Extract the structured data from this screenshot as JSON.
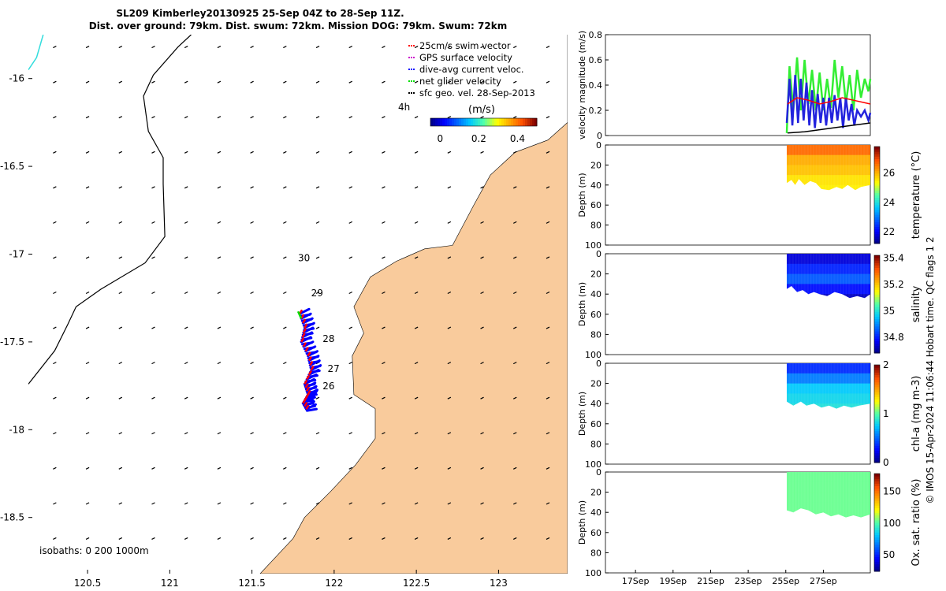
{
  "header": {
    "title_line1": "SL209 Kimberley20130925 25-Sep 04Z to 28-Sep 11Z.",
    "title_line2": "Dist. over ground: 79km. Dist. swum: 72km. Mission DOG: 79km. Swum: 72km"
  },
  "side_note": "© IMOS 15-Apr-2024 11:06:44 Hobart time. QC flags 1  2",
  "colors": {
    "land": "#f9cb9c",
    "coast_line": "#000000",
    "track_red": "#ff0000",
    "track_blue": "#0000ff",
    "track_green": "#00dd00",
    "velocity_green": "#33ee33",
    "velocity_blue": "#2222dd",
    "velocity_red": "#ff0000",
    "cyan_isobath": "#33dddd"
  },
  "chart_data": [
    {
      "id": "map",
      "type": "scatter",
      "xlim": [
        120.14,
        123.42
      ],
      "ylim": [
        -18.82,
        -15.75
      ],
      "x_ticks": [
        "120.5",
        "121",
        "121.5",
        "122",
        "122.5",
        "123"
      ],
      "x_tick_values": [
        120.5,
        121,
        121.5,
        122,
        122.5,
        123
      ],
      "y_ticks": [
        "-16",
        "-16.5",
        "-17",
        "-17.5",
        "-18",
        "-18.5"
      ],
      "y_tick_values": [
        -16,
        -16.5,
        -17,
        -17.5,
        -18,
        -18.5
      ],
      "legend": {
        "placement": "top-right",
        "entries": [
          {
            "label": "25cm/s swim vector",
            "color": "#ff0000"
          },
          {
            "label": "GPS surface velocity",
            "color": "#cc00cc"
          },
          {
            "label": "dive-avg current veloc.",
            "color": "#0000ff"
          },
          {
            "label": "net glider velocity",
            "color": "#00dd00"
          },
          {
            "label": "sfc geo. vel. 28-Sep-2013",
            "color": "#000000"
          }
        ]
      },
      "colorbar": {
        "label": "(m/s)",
        "lag_label": "4h",
        "ticks": [
          "0",
          "0.2",
          "0.4"
        ],
        "tick_values": [
          0,
          0.2,
          0.4
        ],
        "range": [
          -0.05,
          0.5
        ]
      },
      "day_labels": [
        {
          "text": "30",
          "lon": 121.78,
          "lat": -17.04
        },
        {
          "text": "29",
          "lon": 121.86,
          "lat": -17.24
        },
        {
          "text": "28",
          "lon": 121.93,
          "lat": -17.5
        },
        {
          "text": "27",
          "lon": 121.96,
          "lat": -17.67
        },
        {
          "text": "26",
          "lon": 121.93,
          "lat": -17.77
        }
      ],
      "track": [
        [
          121.79,
          -17.34
        ],
        [
          121.82,
          -17.42
        ],
        [
          121.8,
          -17.5
        ],
        [
          121.84,
          -17.58
        ],
        [
          121.86,
          -17.66
        ],
        [
          121.82,
          -17.74
        ],
        [
          121.84,
          -17.8
        ],
        [
          121.81,
          -17.85
        ],
        [
          121.84,
          -17.9
        ]
      ],
      "isobaths_label": "isobaths: 0   200  1000m",
      "isobath_200": [
        [
          120.14,
          -17.74
        ],
        [
          120.3,
          -17.55
        ],
        [
          120.38,
          -17.4
        ],
        [
          120.43,
          -17.3
        ],
        [
          120.58,
          -17.2
        ],
        [
          120.85,
          -17.05
        ],
        [
          120.97,
          -16.9
        ],
        [
          120.96,
          -16.6
        ],
        [
          120.96,
          -16.45
        ],
        [
          120.87,
          -16.3
        ],
        [
          120.84,
          -16.1
        ],
        [
          120.9,
          -15.98
        ],
        [
          121.05,
          -15.82
        ],
        [
          121.13,
          -15.75
        ]
      ],
      "isobath_cyan": [
        [
          120.14,
          -15.95
        ],
        [
          120.19,
          -15.88
        ],
        [
          120.23,
          -15.75
        ]
      ],
      "coast": [
        [
          123.42,
          -15.75
        ],
        [
          123.42,
          -16.25
        ],
        [
          123.3,
          -16.35
        ],
        [
          123.1,
          -16.42
        ],
        [
          122.95,
          -16.55
        ],
        [
          122.85,
          -16.72
        ],
        [
          122.72,
          -16.95
        ],
        [
          122.55,
          -16.97
        ],
        [
          122.38,
          -17.04
        ],
        [
          122.22,
          -17.13
        ],
        [
          122.12,
          -17.3
        ],
        [
          122.18,
          -17.45
        ],
        [
          122.11,
          -17.58
        ],
        [
          122.12,
          -17.8
        ],
        [
          122.25,
          -17.88
        ],
        [
          122.25,
          -18.05
        ],
        [
          122.13,
          -18.2
        ],
        [
          121.98,
          -18.35
        ],
        [
          121.82,
          -18.5
        ],
        [
          121.75,
          -18.62
        ],
        [
          121.55,
          -18.82
        ],
        [
          123.42,
          -18.82
        ]
      ],
      "vector_grid": {
        "lon_start": 120.3,
        "lon_step": 0.2,
        "lat_start": -15.82,
        "lat_step": -0.2
      }
    },
    {
      "id": "velocity",
      "type": "line",
      "ylabel": "velocity magnitude (m/s)",
      "ylim": [
        0,
        0.8
      ],
      "y_ticks": [
        "0",
        "0.2",
        "0.4",
        "0.6",
        "0.8"
      ],
      "y_tick_values": [
        0,
        0.2,
        0.4,
        0.6,
        0.8
      ],
      "xlim": [
        15.4,
        29.5
      ],
      "series": [
        {
          "color": "#33ee33",
          "x": [
            25.05,
            25.2,
            25.4,
            25.6,
            25.8,
            26.0,
            26.2,
            26.4,
            26.6,
            26.8,
            27.0,
            27.2,
            27.4,
            27.6,
            27.8,
            28.0,
            28.2,
            28.4,
            28.6,
            28.8,
            29.0,
            29.2,
            29.4,
            29.5
          ],
          "y": [
            0.02,
            0.55,
            0.2,
            0.62,
            0.2,
            0.6,
            0.25,
            0.52,
            0.2,
            0.5,
            0.2,
            0.45,
            0.22,
            0.6,
            0.3,
            0.55,
            0.25,
            0.48,
            0.2,
            0.52,
            0.3,
            0.45,
            0.35,
            0.45
          ]
        },
        {
          "color": "#2222dd",
          "x": [
            25.05,
            25.2,
            25.35,
            25.5,
            25.65,
            25.8,
            25.95,
            26.1,
            26.25,
            26.4,
            26.55,
            26.7,
            26.85,
            27.0,
            27.15,
            27.3,
            27.45,
            27.6,
            27.75,
            27.9,
            28.05,
            28.2,
            28.35,
            28.5,
            28.65,
            28.8,
            29.0,
            29.2,
            29.4,
            29.5
          ],
          "y": [
            0.1,
            0.45,
            0.08,
            0.48,
            0.1,
            0.45,
            0.12,
            0.42,
            0.08,
            0.36,
            0.06,
            0.33,
            0.1,
            0.3,
            0.08,
            0.3,
            0.1,
            0.32,
            0.12,
            0.3,
            0.06,
            0.3,
            0.12,
            0.25,
            0.08,
            0.2,
            0.15,
            0.2,
            0.12,
            0.18
          ]
        },
        {
          "color": "#ff0000",
          "x": [
            25.1,
            25.6,
            26.2,
            26.8,
            27.4,
            28.0,
            28.6,
            29.2,
            29.5
          ],
          "y": [
            0.25,
            0.3,
            0.28,
            0.25,
            0.27,
            0.3,
            0.28,
            0.26,
            0.25
          ]
        },
        {
          "color": "#000000",
          "x": [
            25.1,
            26.0,
            27.0,
            28.0,
            29.0,
            29.5
          ],
          "y": [
            0.02,
            0.03,
            0.05,
            0.07,
            0.09,
            0.1
          ]
        }
      ]
    },
    {
      "id": "temperature",
      "type": "heatmap",
      "ylabel": "Depth (m)",
      "clabel": "temperature (°C)",
      "ylim": [
        0,
        100
      ],
      "y_ticks": [
        "0",
        "20",
        "40",
        "60",
        "80",
        "100"
      ],
      "y_tick_values": [
        0,
        20,
        40,
        60,
        80,
        100
      ],
      "clim": [
        21.2,
        27.8
      ],
      "c_ticks": [
        "22",
        "24",
        "26"
      ],
      "c_tick_values": [
        22,
        24,
        26
      ],
      "xlim": [
        15.4,
        29.5
      ],
      "fill_start": 25.05,
      "values": [
        26.7,
        26.1,
        25.9,
        25.6,
        25.5
      ],
      "bottom": [
        [
          25.05,
          38
        ],
        [
          25.3,
          35
        ],
        [
          25.5,
          40
        ],
        [
          25.7,
          34
        ],
        [
          26.0,
          40
        ],
        [
          26.3,
          36
        ],
        [
          26.6,
          38
        ],
        [
          26.9,
          44
        ],
        [
          27.3,
          45
        ],
        [
          27.7,
          42
        ],
        [
          28.0,
          44
        ],
        [
          28.3,
          40
        ],
        [
          28.7,
          45
        ],
        [
          29.0,
          42
        ],
        [
          29.5,
          40
        ]
      ]
    },
    {
      "id": "salinity",
      "type": "heatmap",
      "ylabel": "Depth (m)",
      "clabel": "salinity",
      "ylim": [
        0,
        100
      ],
      "y_ticks": [
        "0",
        "20",
        "40",
        "60",
        "80",
        "100"
      ],
      "y_tick_values": [
        0,
        20,
        40,
        60,
        80,
        100
      ],
      "clim": [
        34.68,
        35.42
      ],
      "c_ticks": [
        "34.8",
        "35",
        "35.2",
        "35.4"
      ],
      "c_tick_values": [
        34.8,
        35,
        35.2,
        35.4
      ],
      "xlim": [
        15.4,
        29.5
      ],
      "fill_start": 25.05,
      "values": [
        34.74,
        34.8,
        34.85,
        34.78,
        34.72
      ],
      "bottom": [
        [
          25.05,
          35
        ],
        [
          25.3,
          32
        ],
        [
          25.6,
          38
        ],
        [
          25.9,
          36
        ],
        [
          26.2,
          40
        ],
        [
          26.5,
          38
        ],
        [
          26.8,
          40
        ],
        [
          27.2,
          42
        ],
        [
          27.6,
          38
        ],
        [
          28.0,
          40
        ],
        [
          28.4,
          44
        ],
        [
          28.8,
          42
        ],
        [
          29.2,
          44
        ],
        [
          29.5,
          40
        ]
      ]
    },
    {
      "id": "chla",
      "type": "heatmap",
      "ylabel": "Depth (m)",
      "clabel": "chl-a (mg m-3)",
      "ylim": [
        0,
        100
      ],
      "y_ticks": [
        "0",
        "20",
        "40",
        "60",
        "80",
        "100"
      ],
      "y_tick_values": [
        0,
        20,
        40,
        60,
        80,
        100
      ],
      "clim": [
        0,
        2
      ],
      "c_ticks": [
        "0",
        "1",
        "2"
      ],
      "c_tick_values": [
        0,
        1,
        2
      ],
      "xlim": [
        15.4,
        29.5
      ],
      "fill_start": 25.05,
      "values": [
        0.35,
        0.55,
        0.75,
        0.8,
        0.85
      ],
      "bottom": [
        [
          25.05,
          38
        ],
        [
          25.4,
          42
        ],
        [
          25.8,
          38
        ],
        [
          26.1,
          42
        ],
        [
          26.5,
          40
        ],
        [
          26.9,
          44
        ],
        [
          27.3,
          42
        ],
        [
          27.7,
          45
        ],
        [
          28.1,
          42
        ],
        [
          28.5,
          44
        ],
        [
          28.9,
          42
        ],
        [
          29.5,
          40
        ]
      ]
    },
    {
      "id": "oxygen",
      "type": "heatmap",
      "ylabel": "Depth (m)",
      "clabel": "Ox. sat. ratio (%)",
      "ylim": [
        0,
        100
      ],
      "y_ticks": [
        "0",
        "20",
        "40",
        "60",
        "80",
        "100"
      ],
      "y_tick_values": [
        0,
        20,
        40,
        60,
        80,
        100
      ],
      "clim": [
        24,
        178
      ],
      "c_ticks": [
        "50",
        "100",
        "150"
      ],
      "c_tick_values": [
        50,
        100,
        150
      ],
      "xlim": [
        15.4,
        29.5
      ],
      "x_ticks": [
        "17Sep",
        "19Sep",
        "21Sep",
        "23Sep",
        "25Sep",
        "27Sep"
      ],
      "x_tick_values": [
        17,
        19,
        21,
        23,
        25,
        27
      ],
      "fill_start": 25.05,
      "values": [
        104,
        104,
        104,
        104,
        104
      ],
      "bottom": [
        [
          25.05,
          38
        ],
        [
          25.4,
          40
        ],
        [
          25.8,
          36
        ],
        [
          26.2,
          38
        ],
        [
          26.6,
          42
        ],
        [
          27.0,
          40
        ],
        [
          27.4,
          44
        ],
        [
          27.8,
          42
        ],
        [
          28.2,
          45
        ],
        [
          28.6,
          43
        ],
        [
          29.0,
          45
        ],
        [
          29.5,
          42
        ]
      ]
    }
  ]
}
